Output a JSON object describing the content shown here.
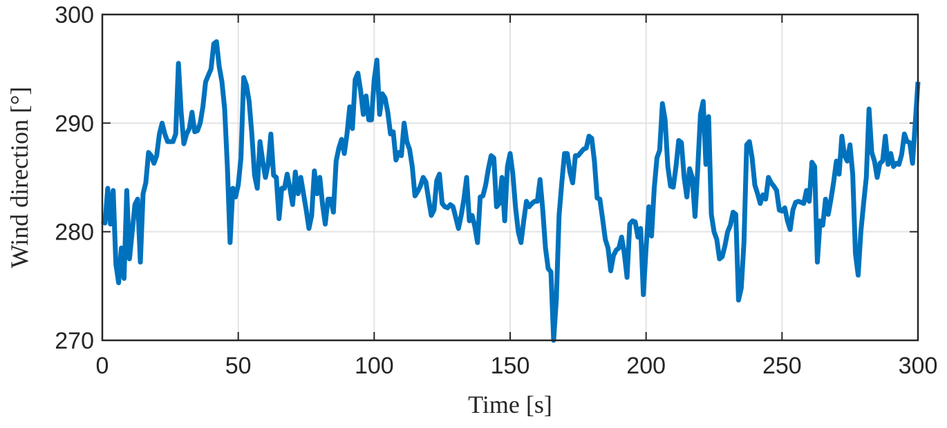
{
  "chart_data": {
    "type": "line",
    "xlabel": "Time [s]",
    "ylabel": "Wind direction [°]",
    "xlim": [
      0,
      300
    ],
    "xticks": [
      0,
      50,
      100,
      150,
      200,
      250,
      300
    ],
    "ylim": [
      270,
      300
    ],
    "yticks": [
      270,
      280,
      290,
      300
    ],
    "grid": true,
    "x": [
      0,
      1,
      2,
      3,
      4,
      5,
      6,
      7,
      8,
      9,
      10,
      11,
      12,
      13,
      14,
      15,
      16,
      17,
      18,
      19,
      20,
      21,
      22,
      23,
      24,
      25,
      26,
      27,
      28,
      29,
      30,
      31,
      32,
      33,
      34,
      35,
      36,
      37,
      38,
      39,
      40,
      41,
      42,
      43,
      44,
      45,
      46,
      47,
      48,
      49,
      50,
      51,
      52,
      53,
      54,
      55,
      56,
      57,
      58,
      59,
      60,
      61,
      62,
      63,
      64,
      65,
      66,
      67,
      68,
      69,
      70,
      71,
      72,
      73,
      74,
      75,
      76,
      77,
      78,
      79,
      80,
      81,
      82,
      83,
      84,
      85,
      86,
      87,
      88,
      89,
      90,
      91,
      92,
      93,
      94,
      95,
      96,
      97,
      98,
      99,
      100,
      101,
      102,
      103,
      104,
      105,
      106,
      107,
      108,
      109,
      110,
      111,
      112,
      113,
      114,
      115,
      116,
      117,
      118,
      119,
      120,
      121,
      122,
      123,
      124,
      125,
      126,
      127,
      128,
      129,
      130,
      131,
      132,
      133,
      134,
      135,
      136,
      137,
      138,
      139,
      140,
      141,
      142,
      143,
      144,
      145,
      146,
      147,
      148,
      149,
      150,
      151,
      152,
      153,
      154,
      155,
      156,
      157,
      158,
      159,
      160,
      161,
      162,
      163,
      164,
      165,
      166,
      167,
      168,
      169,
      170,
      171,
      172,
      173,
      174,
      175,
      176,
      177,
      178,
      179,
      180,
      181,
      182,
      183,
      184,
      185,
      186,
      187,
      188,
      189,
      190,
      191,
      192,
      193,
      194,
      195,
      196,
      197,
      198,
      199,
      200,
      201,
      202,
      203,
      204,
      205,
      206,
      207,
      208,
      209,
      210,
      211,
      212,
      213,
      214,
      215,
      216,
      217,
      218,
      219,
      220,
      221,
      222,
      223,
      224,
      225,
      226,
      227,
      228,
      229,
      230,
      231,
      232,
      233,
      234,
      235,
      236,
      237,
      238,
      239,
      240,
      241,
      242,
      243,
      244,
      245,
      246,
      247,
      248,
      249,
      250,
      251,
      252,
      253,
      254,
      255,
      256,
      257,
      258,
      259,
      260,
      261,
      262,
      263,
      264,
      265,
      266,
      267,
      268,
      269,
      270,
      271,
      272,
      273,
      274,
      275,
      276,
      277,
      278,
      279,
      280,
      281,
      282,
      283,
      284,
      285,
      286,
      287,
      288,
      289,
      290,
      291,
      292,
      293,
      294,
      295,
      296,
      297,
      298,
      299,
      300
    ],
    "series": [
      {
        "color": "#0072bd",
        "values": [
          281,
          280.8,
          284,
          280.7,
          283.8,
          277,
          275.3,
          278.5,
          275.7,
          283.8,
          277.5,
          280,
          282.5,
          283,
          277.2,
          283.5,
          284.5,
          287.3,
          287,
          286.3,
          287,
          289,
          290,
          289,
          288.3,
          288.3,
          288.3,
          289,
          295.5,
          291,
          288.1,
          289,
          289.5,
          291,
          289.2,
          289.3,
          290,
          291.5,
          293.8,
          294.4,
          295,
          297.3,
          297.5,
          295.2,
          293.8,
          291.3,
          286,
          279,
          284,
          283.2,
          284.3,
          286.8,
          294.2,
          293.5,
          292,
          289,
          285.2,
          284,
          288.3,
          286.5,
          285,
          286.2,
          289,
          285.2,
          285,
          281.2,
          284,
          284,
          285.3,
          284,
          282.5,
          285.5,
          283.5,
          285,
          283.5,
          282,
          280.3,
          281.5,
          285.6,
          283.5,
          285,
          282.5,
          280.7,
          283,
          283,
          281.8,
          286.5,
          287.7,
          288.5,
          287.2,
          289,
          291.5,
          289.5,
          294,
          294.6,
          293,
          290.8,
          292.5,
          290.3,
          290.3,
          294,
          295.8,
          290.8,
          292.7,
          292.3,
          291,
          289,
          289.2,
          286.6,
          287.3,
          287,
          290,
          288.3,
          287.6,
          286,
          283.3,
          283.7,
          284.2,
          285,
          284.6,
          283,
          281.5,
          282,
          284.7,
          285.3,
          282.6,
          282.3,
          282.2,
          282.5,
          282.3,
          281.3,
          280.3,
          281.5,
          283,
          285,
          281,
          281.5,
          280.5,
          279,
          283.2,
          283.3,
          284.3,
          285.8,
          287,
          286.8,
          282.3,
          282.6,
          285,
          281,
          286,
          287.2,
          285.3,
          282.2,
          280,
          279,
          281,
          282.8,
          282.3,
          282.6,
          282.8,
          282.8,
          284.8,
          282,
          278.5,
          276.6,
          276.3,
          270,
          273.8,
          281.5,
          284.5,
          287.2,
          287.2,
          285.5,
          284.5,
          287,
          287,
          287.3,
          287.6,
          287.7,
          288.8,
          288.6,
          286.5,
          283.1,
          283,
          281.2,
          279.3,
          278.5,
          276.4,
          277.8,
          278.3,
          278.5,
          279.5,
          278,
          275.8,
          280.7,
          281,
          280.9,
          279.5,
          280.3,
          274.2,
          278.5,
          282.3,
          279.6,
          284,
          286.8,
          287.5,
          291.8,
          290.3,
          286,
          284.2,
          284.1,
          286,
          288.4,
          288.2,
          285,
          283.2,
          285.8,
          285,
          281.4,
          285.8,
          290.8,
          292,
          286.2,
          290.6,
          281.6,
          280,
          279.3,
          277.5,
          277.7,
          278.7,
          280,
          280.6,
          281.8,
          281.6,
          273.7,
          274.8,
          279,
          288,
          288.3,
          286.8,
          284.3,
          283.5,
          282.6,
          283.4,
          283,
          285,
          284.5,
          284.2,
          283.8,
          282,
          281.9,
          282.2,
          281,
          280.2,
          282,
          282.7,
          282.8,
          282.7,
          282.6,
          283.8,
          282.8,
          286.4,
          286,
          277.2,
          281,
          280.6,
          283,
          281.6,
          283,
          284.6,
          286.5,
          285.3,
          288.8,
          287,
          286.5,
          288,
          285.3,
          278,
          276,
          280,
          282.6,
          285,
          291.3,
          287.3,
          286.5,
          285,
          286.3,
          286.5,
          288.8,
          286.2,
          287.2,
          286,
          286.3,
          286.2,
          287.1,
          289,
          288.3,
          288.2,
          286.3,
          290,
          293.8
        ]
      }
    ]
  }
}
